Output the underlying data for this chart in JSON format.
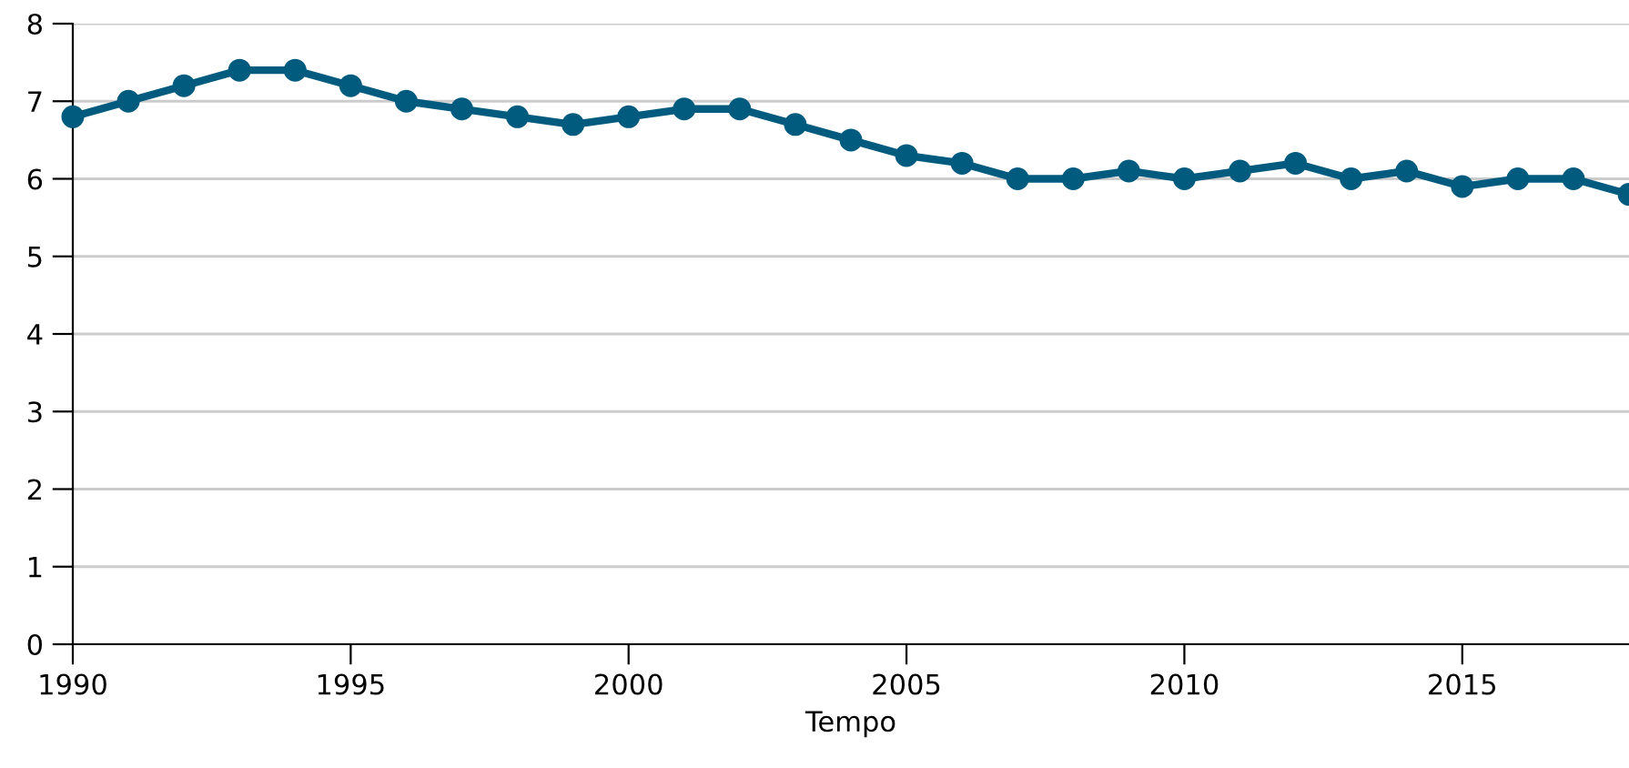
{
  "chart_data": {
    "type": "line",
    "xlabel": "Tempo",
    "x": [
      1990,
      1991,
      1992,
      1993,
      1994,
      1995,
      1996,
      1997,
      1998,
      1999,
      2000,
      2001,
      2002,
      2003,
      2004,
      2005,
      2006,
      2007,
      2008,
      2009,
      2010,
      2011,
      2012,
      2013,
      2014,
      2015,
      2016,
      2017,
      2018
    ],
    "series": [
      {
        "color": "#005b7f",
        "values": [
          6.8,
          7.0,
          7.2,
          7.4,
          7.4,
          7.2,
          7.0,
          6.9,
          6.8,
          6.7,
          6.8,
          6.9,
          6.9,
          6.7,
          6.5,
          6.3,
          6.2,
          6.0,
          6.0,
          6.1,
          6.0,
          6.1,
          6.2,
          6.0,
          6.1,
          5.9,
          6.0,
          6.0,
          5.8
        ]
      }
    ],
    "xlim": [
      1990,
      2018
    ],
    "xticks": [
      1990,
      1995,
      2000,
      2005,
      2010,
      2015
    ],
    "ylim": [
      0,
      8
    ],
    "yticks": [
      0,
      1,
      2,
      3,
      4,
      5,
      6,
      7,
      8
    ],
    "grid": "y",
    "marker": "circle",
    "line_style": "solid",
    "legend": false
  }
}
